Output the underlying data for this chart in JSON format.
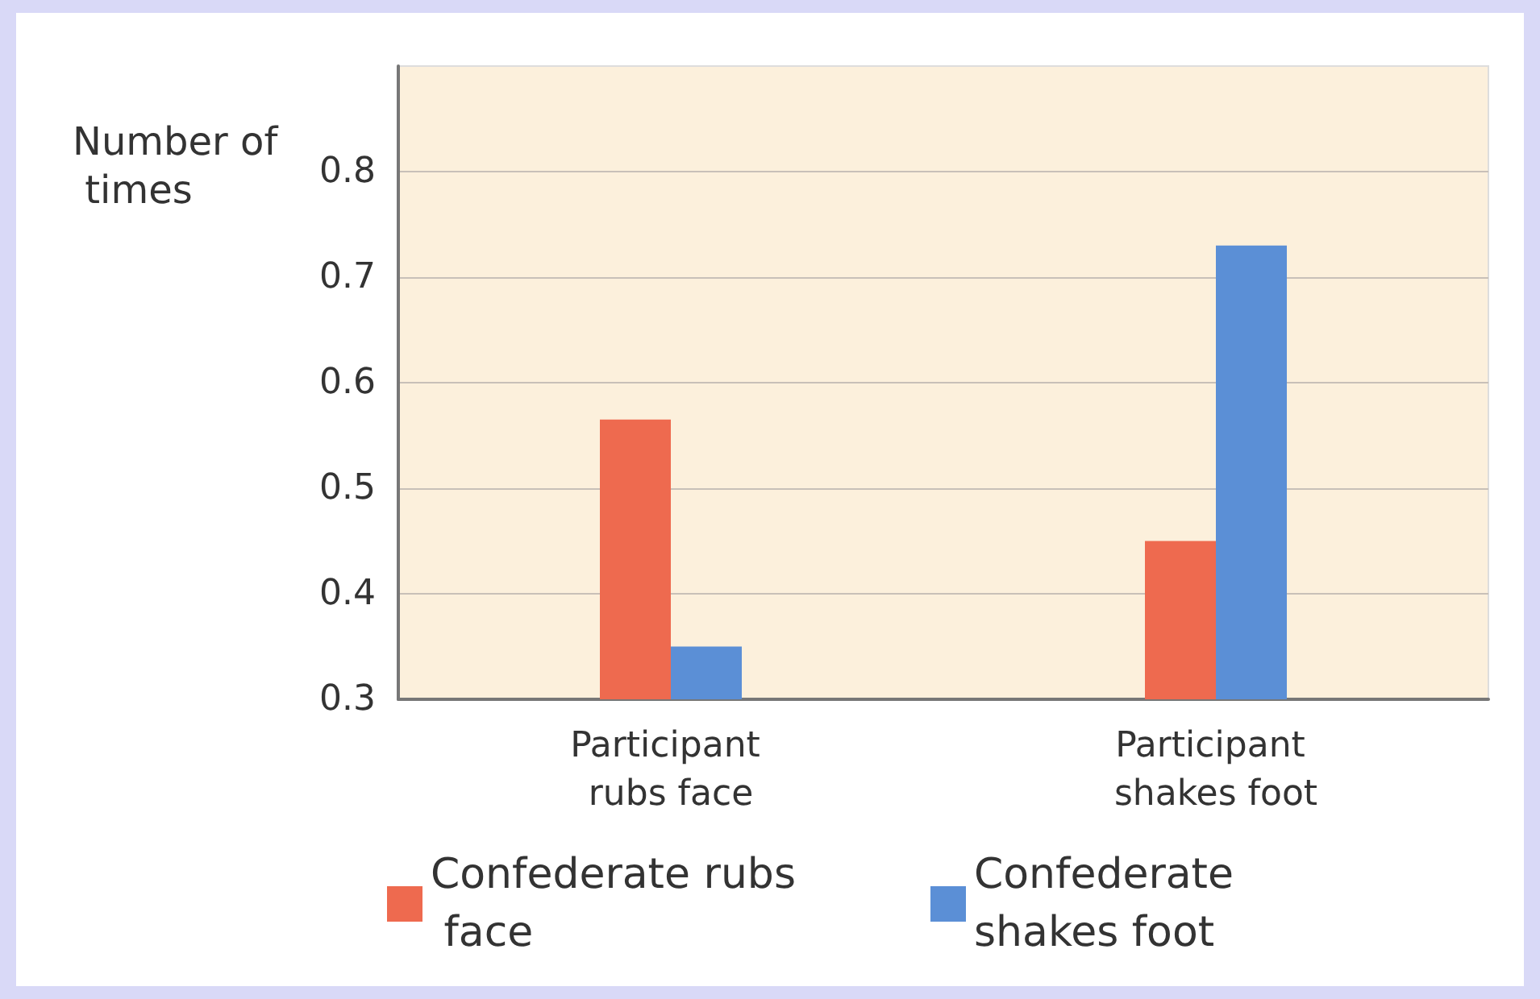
{
  "chart_data": {
    "type": "bar",
    "ylabel": "Number of times",
    "categories": [
      "Participant rubs face",
      "Participant shakes foot"
    ],
    "series": [
      {
        "name": "Confederate rubs face",
        "color": "#ee6a4f",
        "values": [
          0.565,
          0.45
        ]
      },
      {
        "name": "Confederate shakes foot",
        "color": "#5b8fd6",
        "values": [
          0.35,
          0.73
        ]
      }
    ],
    "ylim": [
      0.3,
      0.9
    ],
    "yticks": [
      0.3,
      0.4,
      0.5,
      0.6,
      0.7,
      0.8
    ],
    "grid": "y",
    "legend": "bottom"
  }
}
